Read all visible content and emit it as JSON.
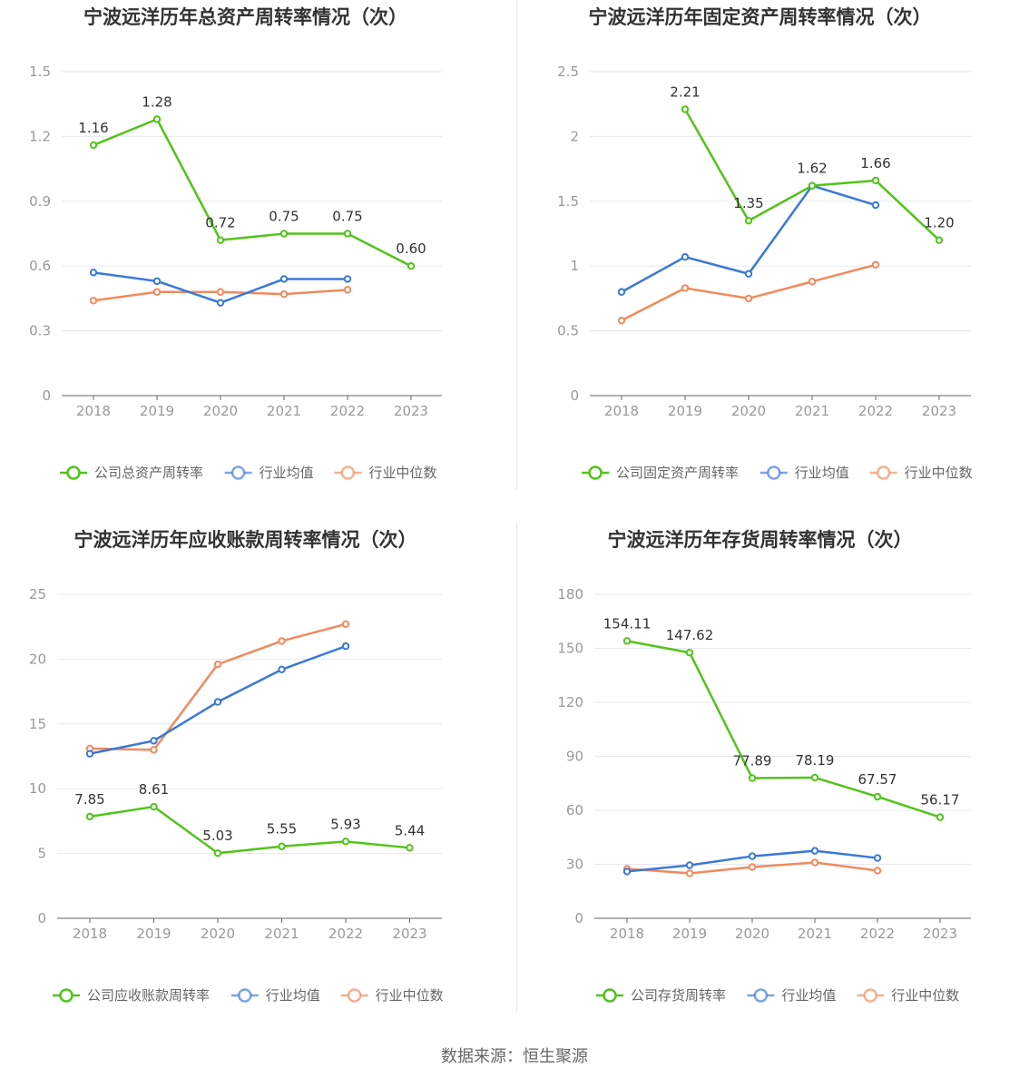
{
  "source_note": "数据来源：恒生聚源",
  "colors": {
    "company": "#52c41a",
    "industry_avg": "#3a78d8",
    "industry_median": "#f08a5d"
  },
  "chart_data": [
    {
      "type": "line",
      "title": "宁波远洋历年总资产周转率情况（次）",
      "categories": [
        "2018",
        "2019",
        "2020",
        "2021",
        "2022",
        "2023"
      ],
      "ylim": [
        0,
        1.5
      ],
      "yticks": [
        "0",
        "0.3",
        "0.6",
        "0.9",
        "1.2",
        "1.5"
      ],
      "ytick_values": [
        0,
        0.3,
        0.6,
        0.9,
        1.2,
        1.5
      ],
      "series": [
        {
          "name": "公司总资产周转率",
          "color": "#52c41a",
          "labels": true,
          "values": [
            1.16,
            1.28,
            0.72,
            0.75,
            0.75,
            0.6
          ],
          "value_labels": [
            "1.16",
            "1.28",
            "0.72",
            "0.75",
            "0.75",
            "0.60"
          ]
        },
        {
          "name": "行业均值",
          "color": "#3a78d8",
          "labels": false,
          "values": [
            0.57,
            0.53,
            0.43,
            0.54,
            0.54,
            null
          ]
        },
        {
          "name": "行业中位数",
          "color": "#f08a5d",
          "labels": false,
          "values": [
            0.44,
            0.48,
            0.48,
            0.47,
            0.49,
            null
          ]
        }
      ]
    },
    {
      "type": "line",
      "title": "宁波远洋历年固定资产周转率情况（次）",
      "categories": [
        "2018",
        "2019",
        "2020",
        "2021",
        "2022",
        "2023"
      ],
      "ylim": [
        0,
        2.5
      ],
      "yticks": [
        "0",
        "0.5",
        "1",
        "1.5",
        "2",
        "2.5"
      ],
      "ytick_values": [
        0,
        0.5,
        1,
        1.5,
        2,
        2.5
      ],
      "series": [
        {
          "name": "公司固定资产周转率",
          "color": "#52c41a",
          "labels": true,
          "values": [
            null,
            2.21,
            1.35,
            1.62,
            1.66,
            1.2
          ],
          "value_labels": [
            "",
            "2.21",
            "1.35",
            "1.62",
            "1.66",
            "1.20"
          ]
        },
        {
          "name": "行业均值",
          "color": "#3a78d8",
          "labels": false,
          "values": [
            0.8,
            1.07,
            0.94,
            1.62,
            1.47,
            null
          ]
        },
        {
          "name": "行业中位数",
          "color": "#f08a5d",
          "labels": false,
          "values": [
            0.58,
            0.83,
            0.75,
            0.88,
            1.01,
            null
          ]
        }
      ]
    },
    {
      "type": "line",
      "title": "宁波远洋历年应收账款周转率情况（次）",
      "categories": [
        "2018",
        "2019",
        "2020",
        "2021",
        "2022",
        "2023"
      ],
      "ylim": [
        0,
        25
      ],
      "yticks": [
        "0",
        "5",
        "10",
        "15",
        "20",
        "25"
      ],
      "ytick_values": [
        0,
        5,
        10,
        15,
        20,
        25
      ],
      "series": [
        {
          "name": "公司应收账款周转率",
          "color": "#52c41a",
          "labels": true,
          "values": [
            7.85,
            8.61,
            5.03,
            5.55,
            5.93,
            5.44
          ],
          "value_labels": [
            "7.85",
            "8.61",
            "5.03",
            "5.55",
            "5.93",
            "5.44"
          ]
        },
        {
          "name": "行业均值",
          "color": "#3a78d8",
          "labels": false,
          "values": [
            12.7,
            13.7,
            16.7,
            19.2,
            21.0,
            null
          ]
        },
        {
          "name": "行业中位数",
          "color": "#f08a5d",
          "labels": false,
          "values": [
            13.1,
            13.0,
            19.6,
            21.4,
            22.7,
            null
          ]
        }
      ]
    },
    {
      "type": "line",
      "title": "宁波远洋历年存货周转率情况（次）",
      "categories": [
        "2018",
        "2019",
        "2020",
        "2021",
        "2022",
        "2023"
      ],
      "ylim": [
        0,
        180
      ],
      "yticks": [
        "0",
        "30",
        "60",
        "90",
        "120",
        "150",
        "180"
      ],
      "ytick_values": [
        0,
        30,
        60,
        90,
        120,
        150,
        180
      ],
      "series": [
        {
          "name": "公司存货周转率",
          "color": "#52c41a",
          "labels": true,
          "values": [
            154.11,
            147.62,
            77.89,
            78.19,
            67.57,
            56.17
          ],
          "value_labels": [
            "154.11",
            "147.62",
            "77.89",
            "78.19",
            "67.57",
            "56.17"
          ]
        },
        {
          "name": "行业均值",
          "color": "#3a78d8",
          "labels": false,
          "values": [
            26,
            29.5,
            34.5,
            37.5,
            33.5,
            null
          ]
        },
        {
          "name": "行业中位数",
          "color": "#f08a5d",
          "labels": false,
          "values": [
            27.5,
            25,
            28.5,
            31,
            26.5,
            null
          ]
        }
      ]
    }
  ]
}
